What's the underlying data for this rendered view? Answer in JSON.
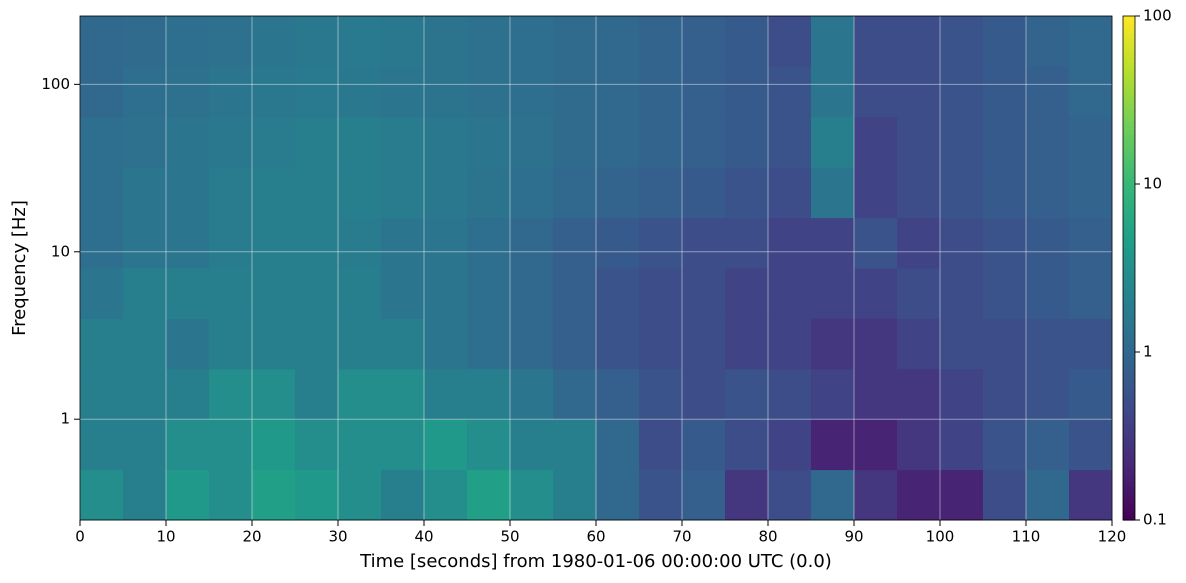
{
  "chart_data": {
    "type": "heatmap",
    "xlabel": "Time [seconds] from 1980-01-06 00:00:00 UTC (0.0)",
    "ylabel": "Frequency [Hz]",
    "xbins": [
      0,
      5,
      10,
      15,
      20,
      25,
      30,
      35,
      40,
      45,
      50,
      55,
      60,
      65,
      70,
      75,
      80,
      85,
      90,
      95,
      100,
      105,
      110,
      115,
      120
    ],
    "ybins": [
      0.25,
      0.5,
      1,
      2,
      4,
      8,
      16,
      32,
      64,
      128,
      256
    ],
    "values": [
      [
        3,
        2,
        4,
        3,
        5,
        4,
        3,
        2,
        3,
        5,
        3,
        2,
        1,
        0.6,
        0.8,
        0.3,
        0.5,
        1,
        0.3,
        0.2,
        0.2,
        0.5,
        1,
        0.3
      ],
      [
        2,
        2,
        3,
        3,
        4,
        3,
        3,
        3,
        4,
        3,
        2,
        2,
        1,
        0.5,
        0.7,
        0.5,
        0.4,
        0.2,
        0.2,
        0.3,
        0.4,
        0.6,
        0.8,
        0.6
      ],
      [
        2,
        2,
        2,
        3,
        3,
        2,
        3,
        3,
        2,
        2,
        1.5,
        1,
        0.8,
        0.6,
        0.5,
        0.6,
        0.5,
        0.4,
        0.3,
        0.3,
        0.4,
        0.5,
        0.6,
        0.7
      ],
      [
        2,
        2,
        1.5,
        2,
        2,
        2,
        2,
        2,
        1.5,
        1.2,
        1,
        0.8,
        0.6,
        0.5,
        0.5,
        0.4,
        0.4,
        0.3,
        0.3,
        0.4,
        0.5,
        0.5,
        0.6,
        0.6
      ],
      [
        1.5,
        2,
        2,
        2,
        2,
        2,
        2,
        1.5,
        1.5,
        1.2,
        1,
        0.8,
        0.6,
        0.5,
        0.5,
        0.4,
        0.4,
        0.4,
        0.4,
        0.5,
        0.5,
        0.6,
        0.7,
        0.8
      ],
      [
        1.2,
        1.5,
        1.5,
        1.8,
        2,
        2,
        1.8,
        1.5,
        1.5,
        1.2,
        1,
        0.8,
        0.7,
        0.6,
        0.5,
        0.5,
        0.4,
        0.4,
        0.6,
        0.4,
        0.5,
        0.6,
        0.7,
        0.8
      ],
      [
        1.2,
        1.5,
        1.5,
        1.8,
        2,
        2,
        2,
        1.8,
        1.6,
        1.4,
        1.2,
        1,
        0.9,
        0.8,
        0.7,
        0.6,
        0.5,
        1.5,
        0.4,
        0.5,
        0.6,
        0.7,
        0.8,
        0.9
      ],
      [
        1.2,
        1.3,
        1.5,
        1.6,
        1.8,
        2,
        2,
        1.8,
        1.6,
        1.5,
        1.3,
        1.1,
        1,
        0.9,
        0.8,
        0.7,
        0.6,
        2,
        0.4,
        0.5,
        0.6,
        0.7,
        0.8,
        0.9
      ],
      [
        1,
        1.2,
        1.3,
        1.5,
        1.6,
        1.7,
        1.6,
        1.5,
        1.4,
        1.3,
        1.2,
        1.1,
        1,
        0.9,
        0.8,
        0.7,
        0.6,
        1.5,
        0.5,
        0.5,
        0.6,
        0.7,
        0.8,
        1
      ],
      [
        1,
        1.1,
        1.2,
        1.3,
        1.5,
        1.6,
        1.7,
        1.6,
        1.4,
        1.3,
        1.2,
        1.1,
        1,
        0.9,
        0.8,
        0.7,
        0.5,
        1.5,
        0.5,
        0.5,
        0.6,
        0.7,
        0.9,
        1
      ]
    ],
    "xlim": [
      0,
      120
    ],
    "xticks": [
      0,
      10,
      20,
      30,
      40,
      50,
      60,
      70,
      80,
      90,
      100,
      110,
      120
    ],
    "ylim": [
      0.25,
      256
    ],
    "yticks": [
      1,
      10,
      100
    ],
    "ylog": true,
    "clim": [
      0.1,
      100
    ],
    "cticks": [
      0.1,
      1,
      10,
      100
    ],
    "clog": true,
    "colormap": "viridis",
    "grid": true
  }
}
